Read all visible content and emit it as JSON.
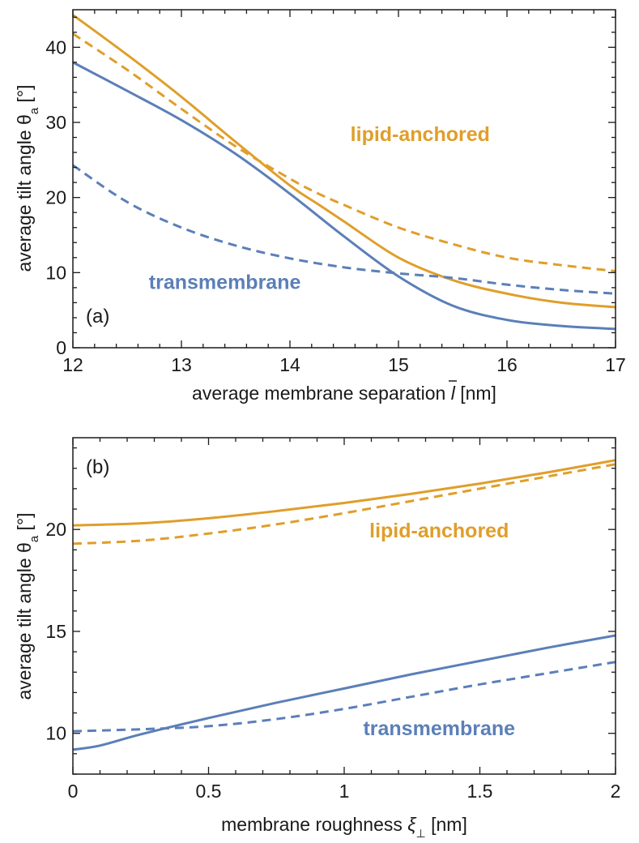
{
  "colors": {
    "transmembrane": "#5b7fb8",
    "lipid_anchored": "#e09e2a",
    "axis": "#1a1a1a"
  },
  "chart_data": [
    {
      "type": "line",
      "panel_label": "(a)",
      "xlabel_text": "average membrane separation",
      "xlabel_symbol": "l",
      "xlabel_unit": "[nm]",
      "ylabel_text": "average tilt angle",
      "ylabel_symbol": "θ",
      "ylabel_subscript": "a",
      "ylabel_unit": "[°]",
      "xlim": [
        12,
        17
      ],
      "ylim": [
        0,
        45
      ],
      "xticks": [
        12,
        13,
        14,
        15,
        16,
        17
      ],
      "yticks": [
        0,
        10,
        20,
        30,
        40
      ],
      "grid": false,
      "annotations": [
        {
          "text": "lipid-anchored",
          "color": "#e09e2a",
          "x": 15.2,
          "y": 27.5
        },
        {
          "text": "transmembrane",
          "color": "#5b7fb8",
          "x": 13.4,
          "y": 7.8
        }
      ],
      "series": [
        {
          "group": "lipid-anchored",
          "style": "solid",
          "color": "#e09e2a",
          "x": [
            12,
            12.5,
            13,
            13.5,
            14,
            14.25,
            14.5,
            15,
            15.5,
            16,
            16.5,
            17
          ],
          "y": [
            44.3,
            39.0,
            33.4,
            27.4,
            21.6,
            19.2,
            16.8,
            12.0,
            9.0,
            7.2,
            6.0,
            5.4
          ]
        },
        {
          "group": "lipid-anchored",
          "style": "dashed",
          "color": "#e09e2a",
          "x": [
            12,
            12.5,
            13,
            13.5,
            14,
            14.25,
            14.5,
            15,
            15.5,
            16,
            16.5,
            17
          ],
          "y": [
            41.8,
            37.0,
            31.8,
            26.8,
            22.5,
            20.6,
            19.0,
            16.0,
            13.8,
            12.0,
            11.0,
            10.2
          ]
        },
        {
          "group": "transmembrane",
          "style": "solid",
          "color": "#5b7fb8",
          "x": [
            12,
            12.5,
            13,
            13.5,
            14,
            14.5,
            15,
            15.5,
            16,
            16.5,
            17
          ],
          "y": [
            38.0,
            34.2,
            30.3,
            25.8,
            20.5,
            14.8,
            9.5,
            5.6,
            3.7,
            2.9,
            2.5
          ]
        },
        {
          "group": "transmembrane",
          "style": "dashed",
          "color": "#5b7fb8",
          "x": [
            12,
            12.5,
            13,
            13.5,
            14,
            14.5,
            15,
            15.5,
            16,
            16.5,
            17
          ],
          "y": [
            24.3,
            19.4,
            16.0,
            13.6,
            11.9,
            10.7,
            9.9,
            9.3,
            8.4,
            7.7,
            7.2
          ]
        }
      ]
    },
    {
      "type": "line",
      "panel_label": "(b)",
      "xlabel_text": "membrane roughness",
      "xlabel_symbol": "ξ",
      "xlabel_subscript": "⊥",
      "xlabel_unit": "[nm]",
      "ylabel_text": "average tilt angle",
      "ylabel_symbol": "θ",
      "ylabel_subscript": "a",
      "ylabel_unit": "[°]",
      "xlim": [
        0,
        2
      ],
      "ylim": [
        8,
        24.5
      ],
      "xticks": [
        "0",
        "0.5",
        "1",
        "1.5",
        "2"
      ],
      "yticks": [
        10,
        15,
        20
      ],
      "grid": false,
      "annotations": [
        {
          "text": "lipid-anchored",
          "color": "#e09e2a",
          "x": 1.35,
          "y": 19.6
        },
        {
          "text": "transmembrane",
          "color": "#5b7fb8",
          "x": 1.35,
          "y": 9.9
        }
      ],
      "series": [
        {
          "group": "lipid-anchored",
          "style": "solid",
          "color": "#e09e2a",
          "x": [
            0,
            0.25,
            0.5,
            0.75,
            1.0,
            1.25,
            1.5,
            1.75,
            2.0
          ],
          "y": [
            20.2,
            20.3,
            20.55,
            20.9,
            21.3,
            21.75,
            22.25,
            22.8,
            23.4
          ]
        },
        {
          "group": "lipid-anchored",
          "style": "dashed",
          "color": "#e09e2a",
          "x": [
            0,
            0.25,
            0.5,
            0.75,
            1.0,
            1.25,
            1.5,
            1.75,
            2.0
          ],
          "y": [
            19.3,
            19.45,
            19.8,
            20.25,
            20.8,
            21.4,
            22.0,
            22.6,
            23.2
          ]
        },
        {
          "group": "transmembrane",
          "style": "solid",
          "color": "#5b7fb8",
          "x": [
            0,
            0.1,
            0.25,
            0.5,
            0.75,
            1.0,
            1.25,
            1.5,
            1.75,
            2.0
          ],
          "y": [
            9.2,
            9.4,
            9.95,
            10.75,
            11.5,
            12.2,
            12.9,
            13.55,
            14.2,
            14.8
          ]
        },
        {
          "group": "transmembrane",
          "style": "dashed",
          "color": "#5b7fb8",
          "x": [
            0,
            0.25,
            0.5,
            0.75,
            1.0,
            1.25,
            1.5,
            1.75,
            2.0
          ],
          "y": [
            10.1,
            10.2,
            10.35,
            10.7,
            11.2,
            11.8,
            12.4,
            12.95,
            13.5
          ]
        }
      ]
    }
  ]
}
